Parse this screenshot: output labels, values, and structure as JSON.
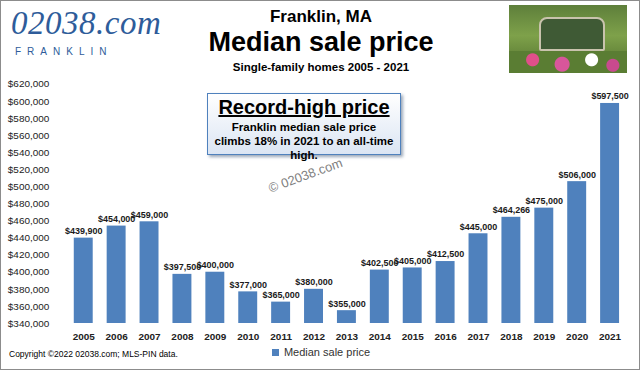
{
  "chart_data": {
    "type": "bar",
    "header": "Franklin, MA",
    "title": "Median sale price",
    "subtitle": "Single-family homes 2005 - 2021",
    "logo": {
      "name": "02038.com",
      "tagline": "FRANKLIN"
    },
    "annotations": [
      {
        "title": "Record-high price",
        "text": "Franklin median sale price climbs 18% in 2021 to an all-time high."
      }
    ],
    "watermark": "© 02038.com",
    "source": "Copyright ©2022 02038.com; MLS-PIN data.",
    "categories": [
      "2005",
      "2006",
      "2007",
      "2008",
      "2009",
      "2010",
      "2011",
      "2012",
      "2013",
      "2014",
      "2015",
      "2016",
      "2017",
      "2018",
      "2019",
      "2020",
      "2021"
    ],
    "series": [
      {
        "name": "Median sale price",
        "color": "#4f81bd",
        "values": [
          439900,
          454000,
          459000,
          397500,
          400000,
          377000,
          365000,
          380000,
          355000,
          402500,
          405000,
          412500,
          445000,
          464266,
          475000,
          506000,
          597500
        ],
        "value_labels": [
          "$439,900",
          "$454,000",
          "$459,000",
          "$397,500",
          "$400,000",
          "$377,000",
          "$365,000",
          "$380,000",
          "$355,000",
          "$402,500",
          "$405,000",
          "$412,500",
          "$445,000",
          "$464,266",
          "$475,000",
          "$506,000",
          "$597,500"
        ]
      }
    ],
    "ylim": [
      340000,
      620000
    ],
    "yticks": [
      {
        "value": 340000,
        "label": "$340,000"
      },
      {
        "value": 360000,
        "label": "$360,000"
      },
      {
        "value": 380000,
        "label": "$380,000"
      },
      {
        "value": 400000,
        "label": "$400,000"
      },
      {
        "value": 420000,
        "label": "$420,000"
      },
      {
        "value": 440000,
        "label": "$440,000"
      },
      {
        "value": 460000,
        "label": "$460,000"
      },
      {
        "value": 480000,
        "label": "$480,000"
      },
      {
        "value": 500000,
        "label": "$500,000"
      },
      {
        "value": 520000,
        "label": "$520,000"
      },
      {
        "value": 540000,
        "label": "$540,000"
      },
      {
        "value": 560000,
        "label": "$560,000"
      },
      {
        "value": 580000,
        "label": "$580,000"
      },
      {
        "value": 600000,
        "label": "$600,000"
      },
      {
        "value": 620000,
        "label": "$620,000"
      }
    ],
    "grid": false,
    "data_labels": true,
    "legend": "bottom"
  }
}
